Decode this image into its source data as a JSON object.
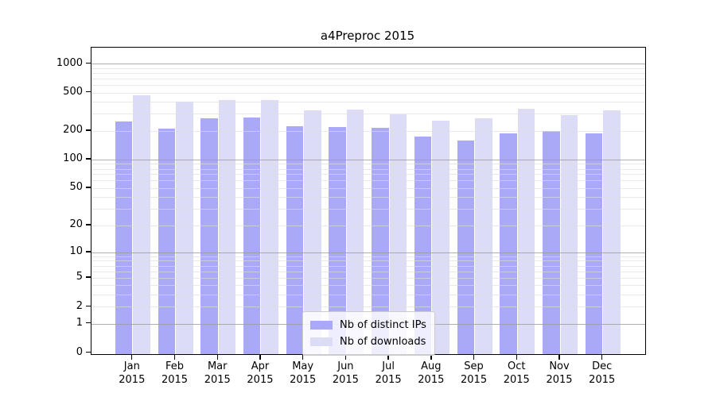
{
  "title": "a4Preproc 2015",
  "year_label": "2015",
  "colors": {
    "distinct_ips": "#a9a9f7",
    "downloads": "#dcdcf7",
    "spine": "#000000",
    "grid_minor": "#dddddd",
    "grid_major": "#9b9b9b"
  },
  "legend": {
    "items": [
      {
        "label": "Nb of distinct IPs",
        "color": "#a9a9f7"
      },
      {
        "label": "Nb of downloads",
        "color": "#dcdcf7"
      }
    ]
  },
  "chart_data": {
    "type": "bar",
    "title": "a4Preproc 2015",
    "categories": [
      "Jan",
      "Feb",
      "Mar",
      "Apr",
      "May",
      "Jun",
      "Jul",
      "Aug",
      "Sep",
      "Oct",
      "Nov",
      "Dec"
    ],
    "category_year": "2015",
    "series": [
      {
        "name": "Nb of distinct IPs",
        "color": "#a9a9f7",
        "values": [
          250,
          210,
          268,
          277,
          222,
          218,
          213,
          175,
          157,
          188,
          200,
          188
        ]
      },
      {
        "name": "Nb of downloads",
        "color": "#dcdcf7",
        "values": [
          465,
          405,
          420,
          420,
          325,
          330,
          296,
          255,
          267,
          340,
          292,
          328
        ]
      }
    ],
    "xlabel": "",
    "ylabel": "",
    "yscale": "log1p",
    "yticks": [
      0,
      1,
      2,
      5,
      10,
      20,
      50,
      100,
      200,
      500,
      1000
    ],
    "ylim": [
      0,
      1420
    ],
    "grid": true,
    "legend_position": "lower center"
  }
}
